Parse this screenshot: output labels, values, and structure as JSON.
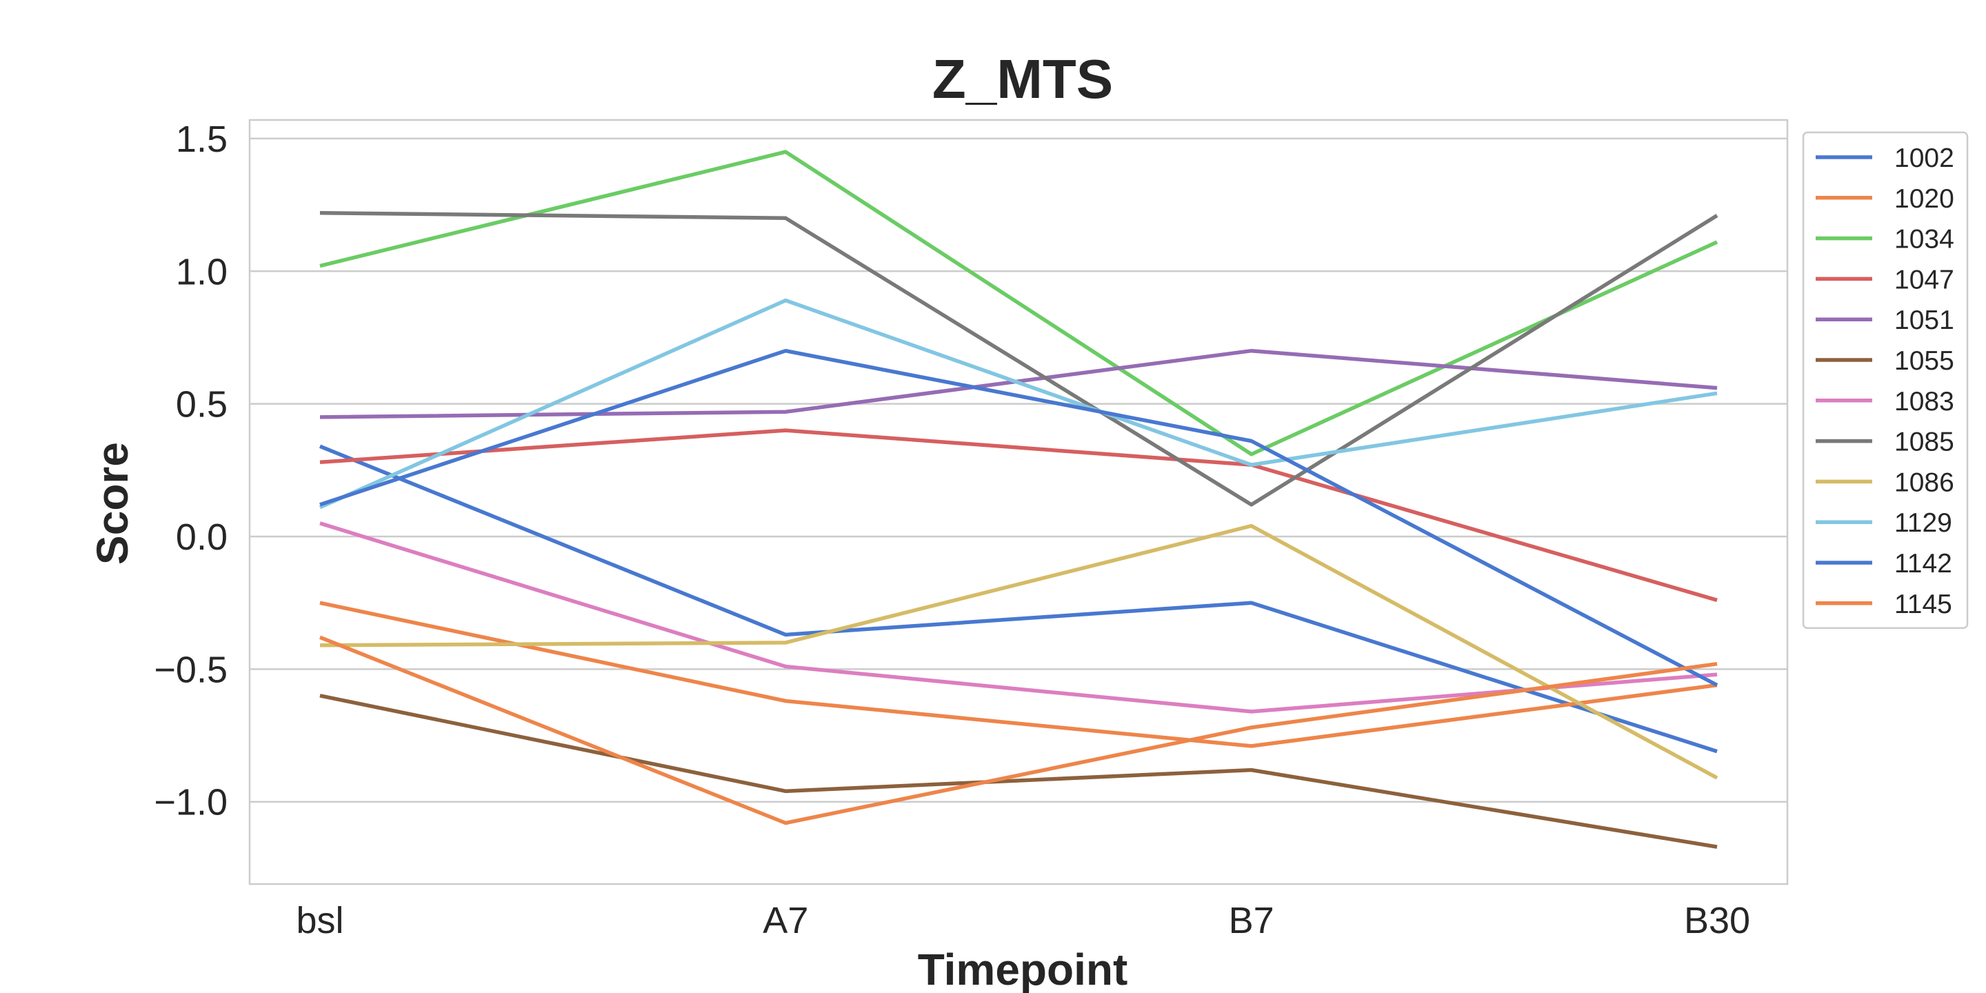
{
  "chart_data": {
    "type": "line",
    "title": "Z_MTS",
    "xlabel": "Timepoint",
    "ylabel": "Score",
    "categories": [
      "bsl",
      "A7",
      "B7",
      "B30"
    ],
    "ylim": [
      -1.31,
      1.57
    ],
    "yticks": [
      -1.0,
      -0.5,
      0.0,
      0.5,
      1.0,
      1.5
    ],
    "ytick_labels": [
      "−1.0",
      "−0.5",
      "0.0",
      "0.5",
      "1.0",
      "1.5"
    ],
    "grid": true,
    "legend_placement": "outside-right",
    "series": [
      {
        "name": "1002",
        "color": "#4878d0",
        "values": [
          0.34,
          -0.37,
          -0.25,
          -0.81
        ]
      },
      {
        "name": "1020",
        "color": "#ee854a",
        "values": [
          -0.25,
          -0.62,
          -0.79,
          -0.56
        ]
      },
      {
        "name": "1034",
        "color": "#6acc64",
        "values": [
          1.02,
          1.45,
          0.31,
          1.11
        ]
      },
      {
        "name": "1047",
        "color": "#d65f5f",
        "values": [
          0.28,
          0.4,
          0.27,
          -0.24
        ]
      },
      {
        "name": "1051",
        "color": "#956cb4",
        "values": [
          0.45,
          0.47,
          0.7,
          0.56
        ]
      },
      {
        "name": "1055",
        "color": "#8c613c",
        "values": [
          -0.6,
          -0.96,
          -0.88,
          -1.17
        ]
      },
      {
        "name": "1083",
        "color": "#dc7ec0",
        "values": [
          0.05,
          -0.49,
          -0.66,
          -0.52
        ]
      },
      {
        "name": "1085",
        "color": "#797979",
        "values": [
          1.22,
          1.2,
          0.12,
          1.21
        ]
      },
      {
        "name": "1086",
        "color": "#d5bb67",
        "values": [
          -0.41,
          -0.4,
          0.04,
          -0.91
        ]
      },
      {
        "name": "1129",
        "color": "#82c6e2",
        "values": [
          0.11,
          0.89,
          0.27,
          0.54
        ]
      },
      {
        "name": "1142",
        "color": "#4878d0",
        "values": [
          0.12,
          0.7,
          0.36,
          -0.56
        ]
      },
      {
        "name": "1145",
        "color": "#ee854a",
        "values": [
          -0.38,
          -1.08,
          -0.72,
          -0.48
        ]
      }
    ]
  }
}
